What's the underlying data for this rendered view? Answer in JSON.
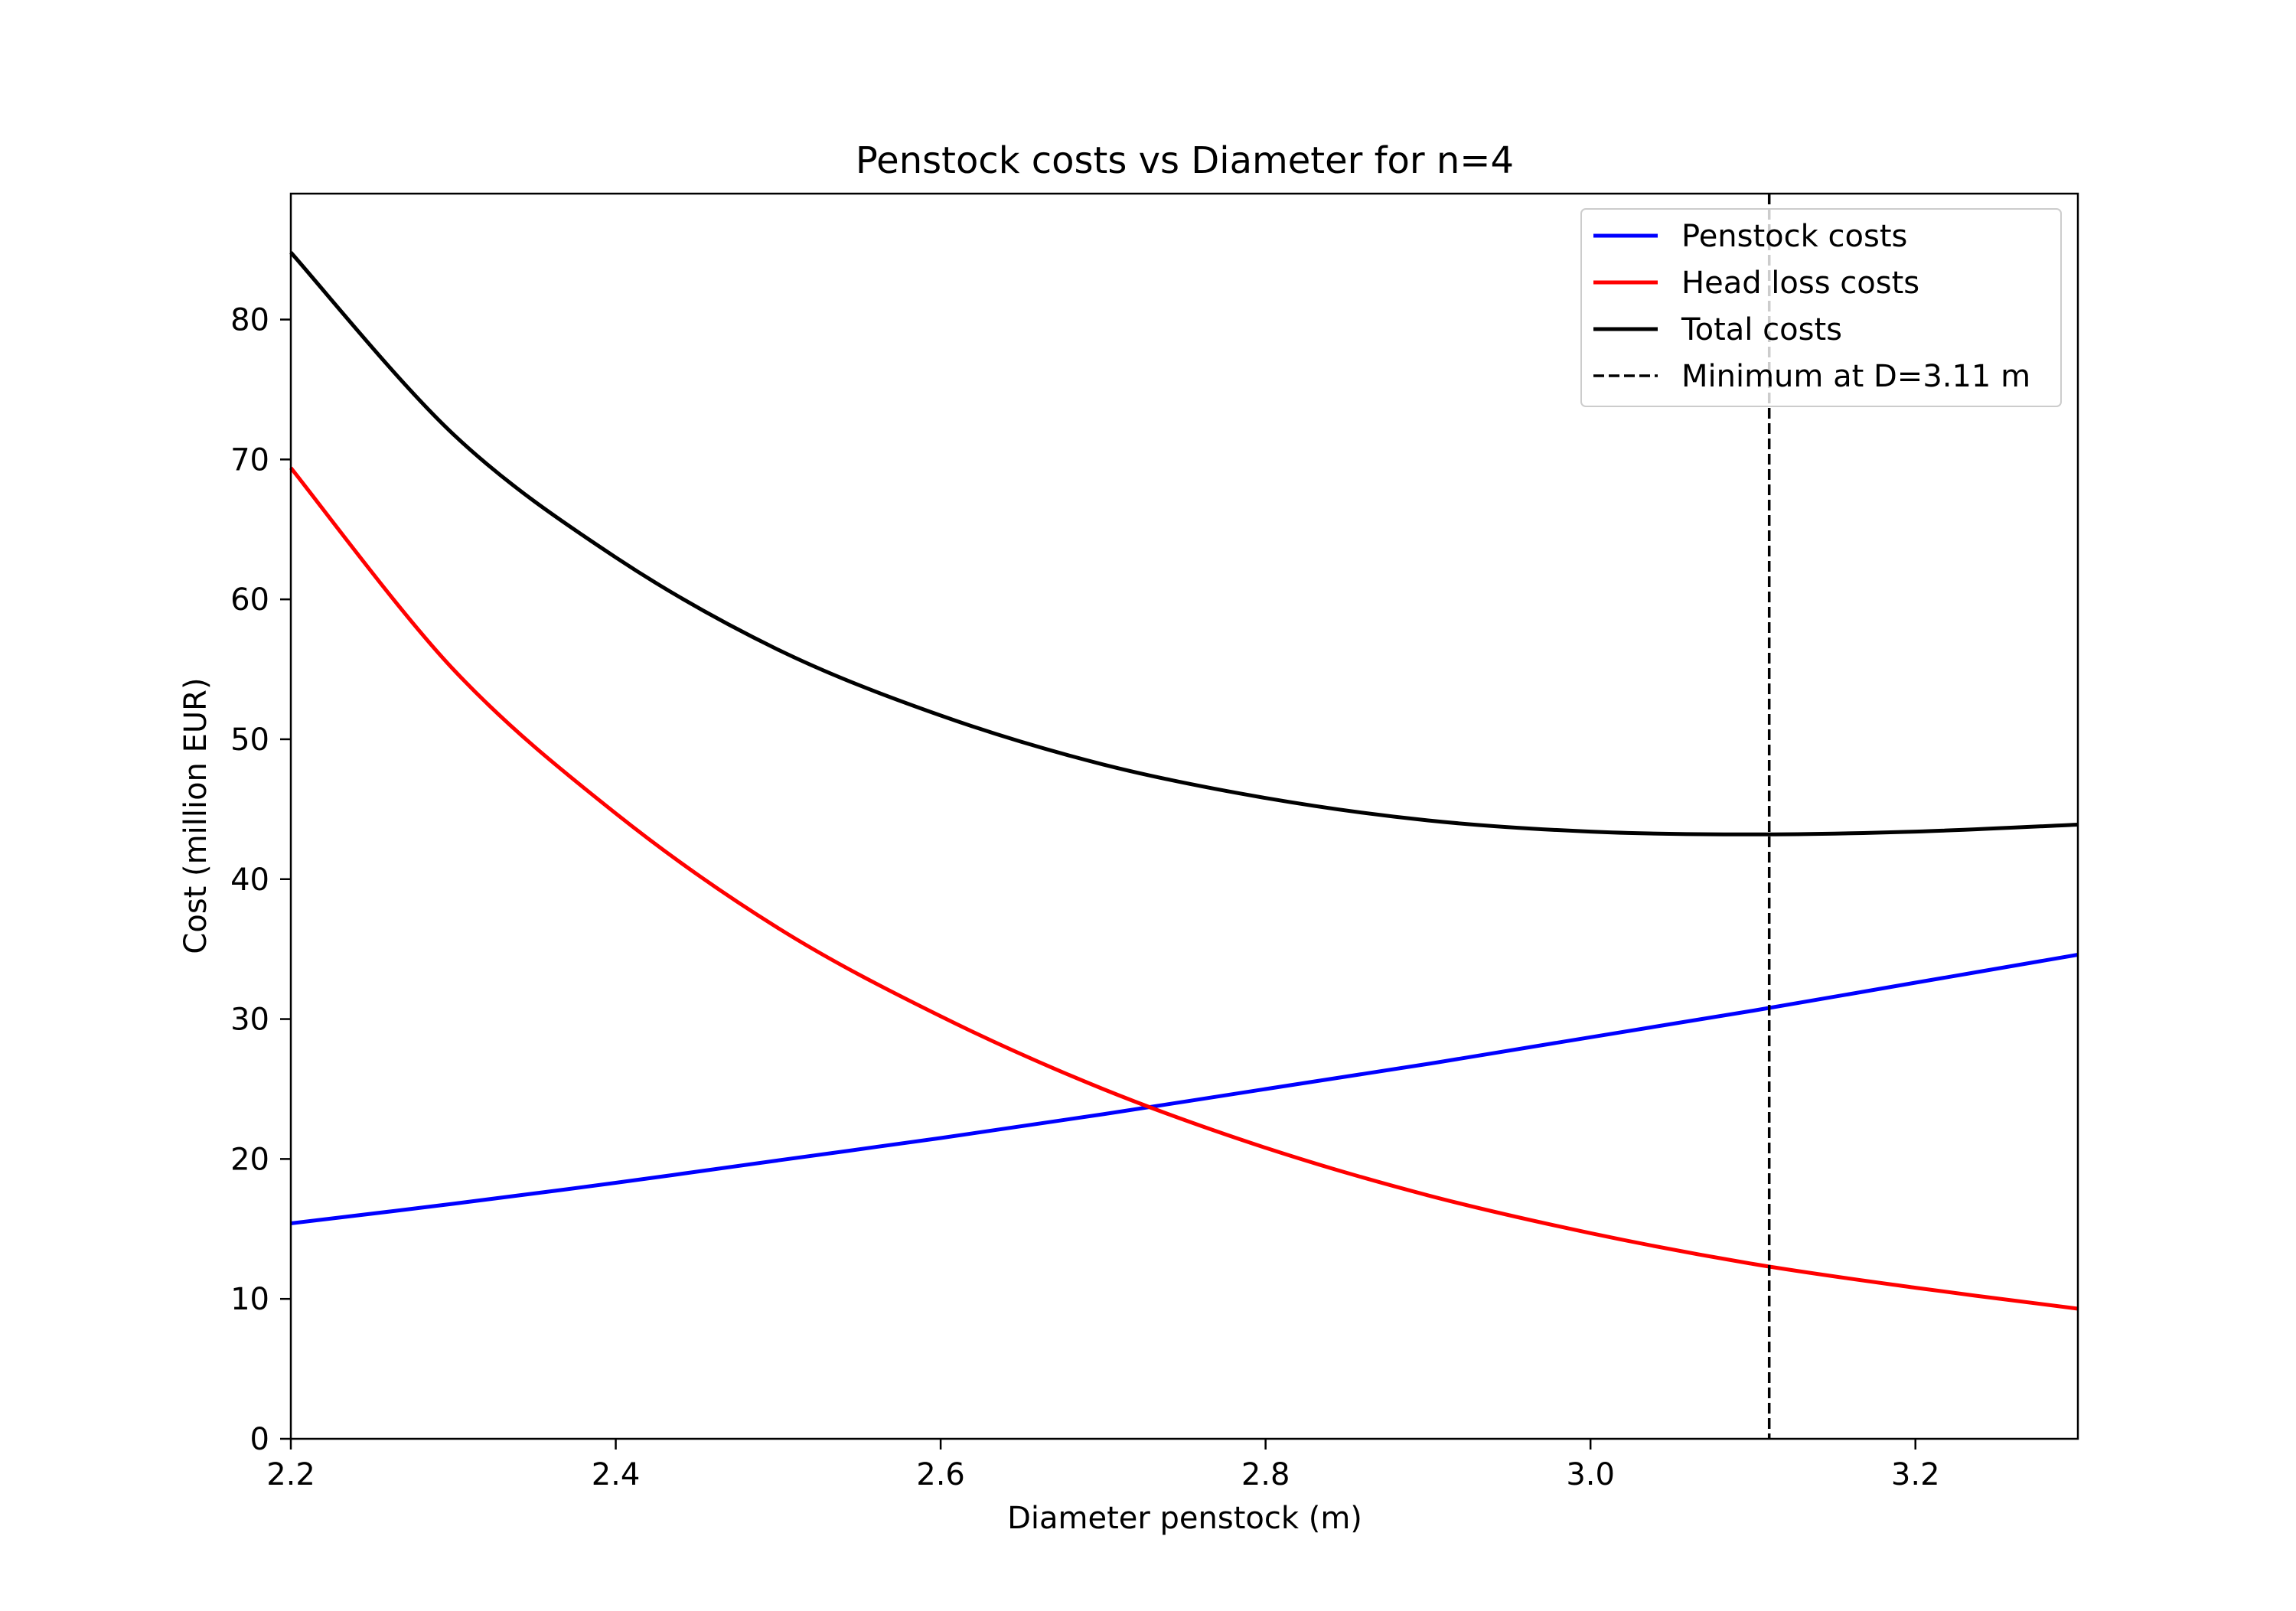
{
  "chart_data": {
    "type": "line",
    "title": "Penstock costs vs Diameter for n=4",
    "xlabel": "Diameter penstock (m)",
    "ylabel": "Cost (million EUR)",
    "xlim": [
      2.2,
      3.3
    ],
    "ylim": [
      0,
      89
    ],
    "xticks": [
      2.2,
      2.4,
      2.6,
      2.8,
      3.0,
      3.2
    ],
    "xtick_labels": [
      "2.2",
      "2.4",
      "2.6",
      "2.8",
      "3.0",
      "3.2"
    ],
    "yticks": [
      0,
      10,
      20,
      30,
      40,
      50,
      60,
      70,
      80
    ],
    "ytick_labels": [
      "0",
      "10",
      "20",
      "30",
      "40",
      "50",
      "60",
      "70",
      "80"
    ],
    "grid": false,
    "legend_position": "top-right",
    "x": [
      2.2,
      2.3,
      2.4,
      2.5,
      2.6,
      2.7,
      2.8,
      2.9,
      3.0,
      3.1,
      3.2,
      3.3
    ],
    "series": [
      {
        "name": "Penstock costs",
        "color": "#0000ff",
        "style": "solid",
        "values": [
          15.4,
          16.8,
          18.3,
          19.9,
          21.5,
          23.2,
          25.0,
          26.8,
          28.7,
          30.6,
          32.6,
          34.6
        ]
      },
      {
        "name": "Head loss costs",
        "color": "#ff0000",
        "style": "solid",
        "values": [
          69.4,
          55.0,
          44.7,
          36.5,
          30.2,
          25.0,
          20.8,
          17.4,
          14.7,
          12.5,
          10.8,
          9.3
        ]
      },
      {
        "name": "Total costs",
        "color": "#000000",
        "style": "solid",
        "values": [
          84.8,
          71.8,
          63.0,
          56.4,
          51.7,
          48.2,
          45.8,
          44.2,
          43.4,
          43.2,
          43.4,
          43.9
        ]
      }
    ],
    "vline": {
      "name": "Minimum at D=3.11 m",
      "x": 3.11,
      "color": "#000000",
      "style": "dashed"
    }
  }
}
